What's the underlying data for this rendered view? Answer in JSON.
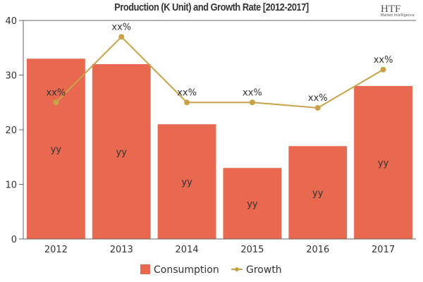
{
  "chart_data": {
    "type": "bar",
    "title": "Production (K Unit) and Growth Rate [2012-2017]",
    "categories": [
      "2012",
      "2013",
      "2014",
      "2015",
      "2016",
      "2017"
    ],
    "ylim": [
      0,
      40
    ],
    "yticks": [
      "0",
      "10",
      "20",
      "30",
      "40"
    ],
    "series": [
      {
        "name": "Consumption",
        "type": "bar",
        "color": "#e8694f",
        "values": [
          33,
          32,
          21,
          13,
          17,
          28
        ],
        "labels": [
          "yy",
          "yy",
          "yy",
          "yy",
          "yy",
          "yy"
        ]
      },
      {
        "name": "Growth",
        "type": "line",
        "color": "#c9a24a",
        "values": [
          25,
          37,
          25,
          25,
          24,
          31
        ],
        "labels": [
          "xx%",
          "xx%",
          "xx%",
          "xx%",
          "xx%",
          "xx%"
        ]
      }
    ],
    "legend": "bottom",
    "grid": false
  },
  "logo": {
    "text": "HTF",
    "subtext": "Market Intelligence"
  }
}
